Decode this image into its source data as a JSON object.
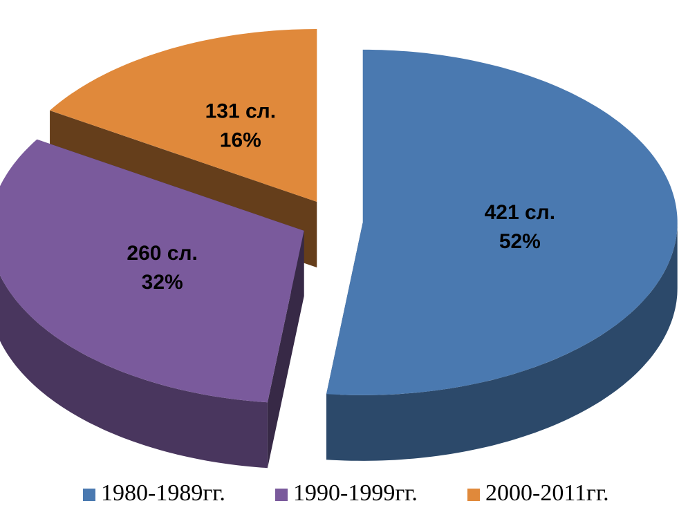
{
  "chart_data": {
    "type": "pie3d",
    "categories": [
      "1980-1989гг.",
      "1990-1999гг.",
      "2000-2011гг."
    ],
    "values": [
      421,
      260,
      131
    ],
    "value_labels": [
      "421 сл.",
      "260 сл.",
      "131 сл."
    ],
    "percents": [
      52,
      32,
      16
    ],
    "percent_labels": [
      "52%",
      "32%",
      "16%"
    ],
    "colors": [
      "#4a79b0",
      "#7a5a9c",
      "#e0893b"
    ],
    "legend": "bottom"
  }
}
